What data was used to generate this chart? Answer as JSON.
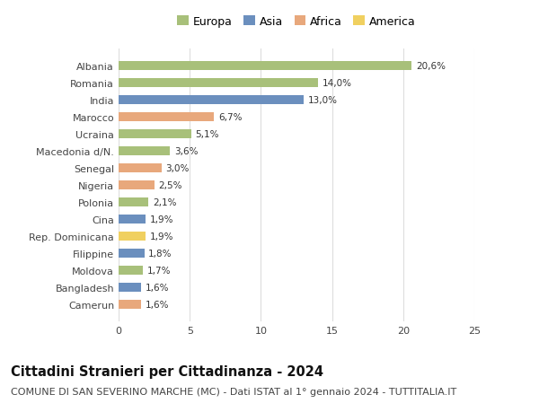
{
  "countries": [
    "Albania",
    "Romania",
    "India",
    "Marocco",
    "Ucraina",
    "Macedonia d/N.",
    "Senegal",
    "Nigeria",
    "Polonia",
    "Cina",
    "Rep. Dominicana",
    "Filippine",
    "Moldova",
    "Bangladesh",
    "Camerun"
  ],
  "values": [
    20.6,
    14.0,
    13.0,
    6.7,
    5.1,
    3.6,
    3.0,
    2.5,
    2.1,
    1.9,
    1.9,
    1.8,
    1.7,
    1.6,
    1.6
  ],
  "labels": [
    "20,6%",
    "14,0%",
    "13,0%",
    "6,7%",
    "5,1%",
    "3,6%",
    "3,0%",
    "2,5%",
    "2,1%",
    "1,9%",
    "1,9%",
    "1,8%",
    "1,7%",
    "1,6%",
    "1,6%"
  ],
  "continents": [
    "Europa",
    "Europa",
    "Asia",
    "Africa",
    "Europa",
    "Europa",
    "Africa",
    "Africa",
    "Europa",
    "Asia",
    "America",
    "Asia",
    "Europa",
    "Asia",
    "Africa"
  ],
  "colors": {
    "Europa": "#a8c07a",
    "Asia": "#6b8fbe",
    "Africa": "#e8a87c",
    "America": "#f0d060"
  },
  "legend_order": [
    "Europa",
    "Asia",
    "Africa",
    "America"
  ],
  "title": "Cittadini Stranieri per Cittadinanza - 2024",
  "subtitle": "COMUNE DI SAN SEVERINO MARCHE (MC) - Dati ISTAT al 1° gennaio 2024 - TUTTITALIA.IT",
  "xlim": [
    0,
    25
  ],
  "xticks": [
    0,
    5,
    10,
    15,
    20,
    25
  ],
  "bg_color": "#ffffff",
  "grid_color": "#dddddd",
  "bar_height": 0.55,
  "title_fontsize": 10.5,
  "subtitle_fontsize": 8,
  "label_fontsize": 7.5,
  "ytick_fontsize": 8,
  "xtick_fontsize": 8,
  "legend_fontsize": 9
}
